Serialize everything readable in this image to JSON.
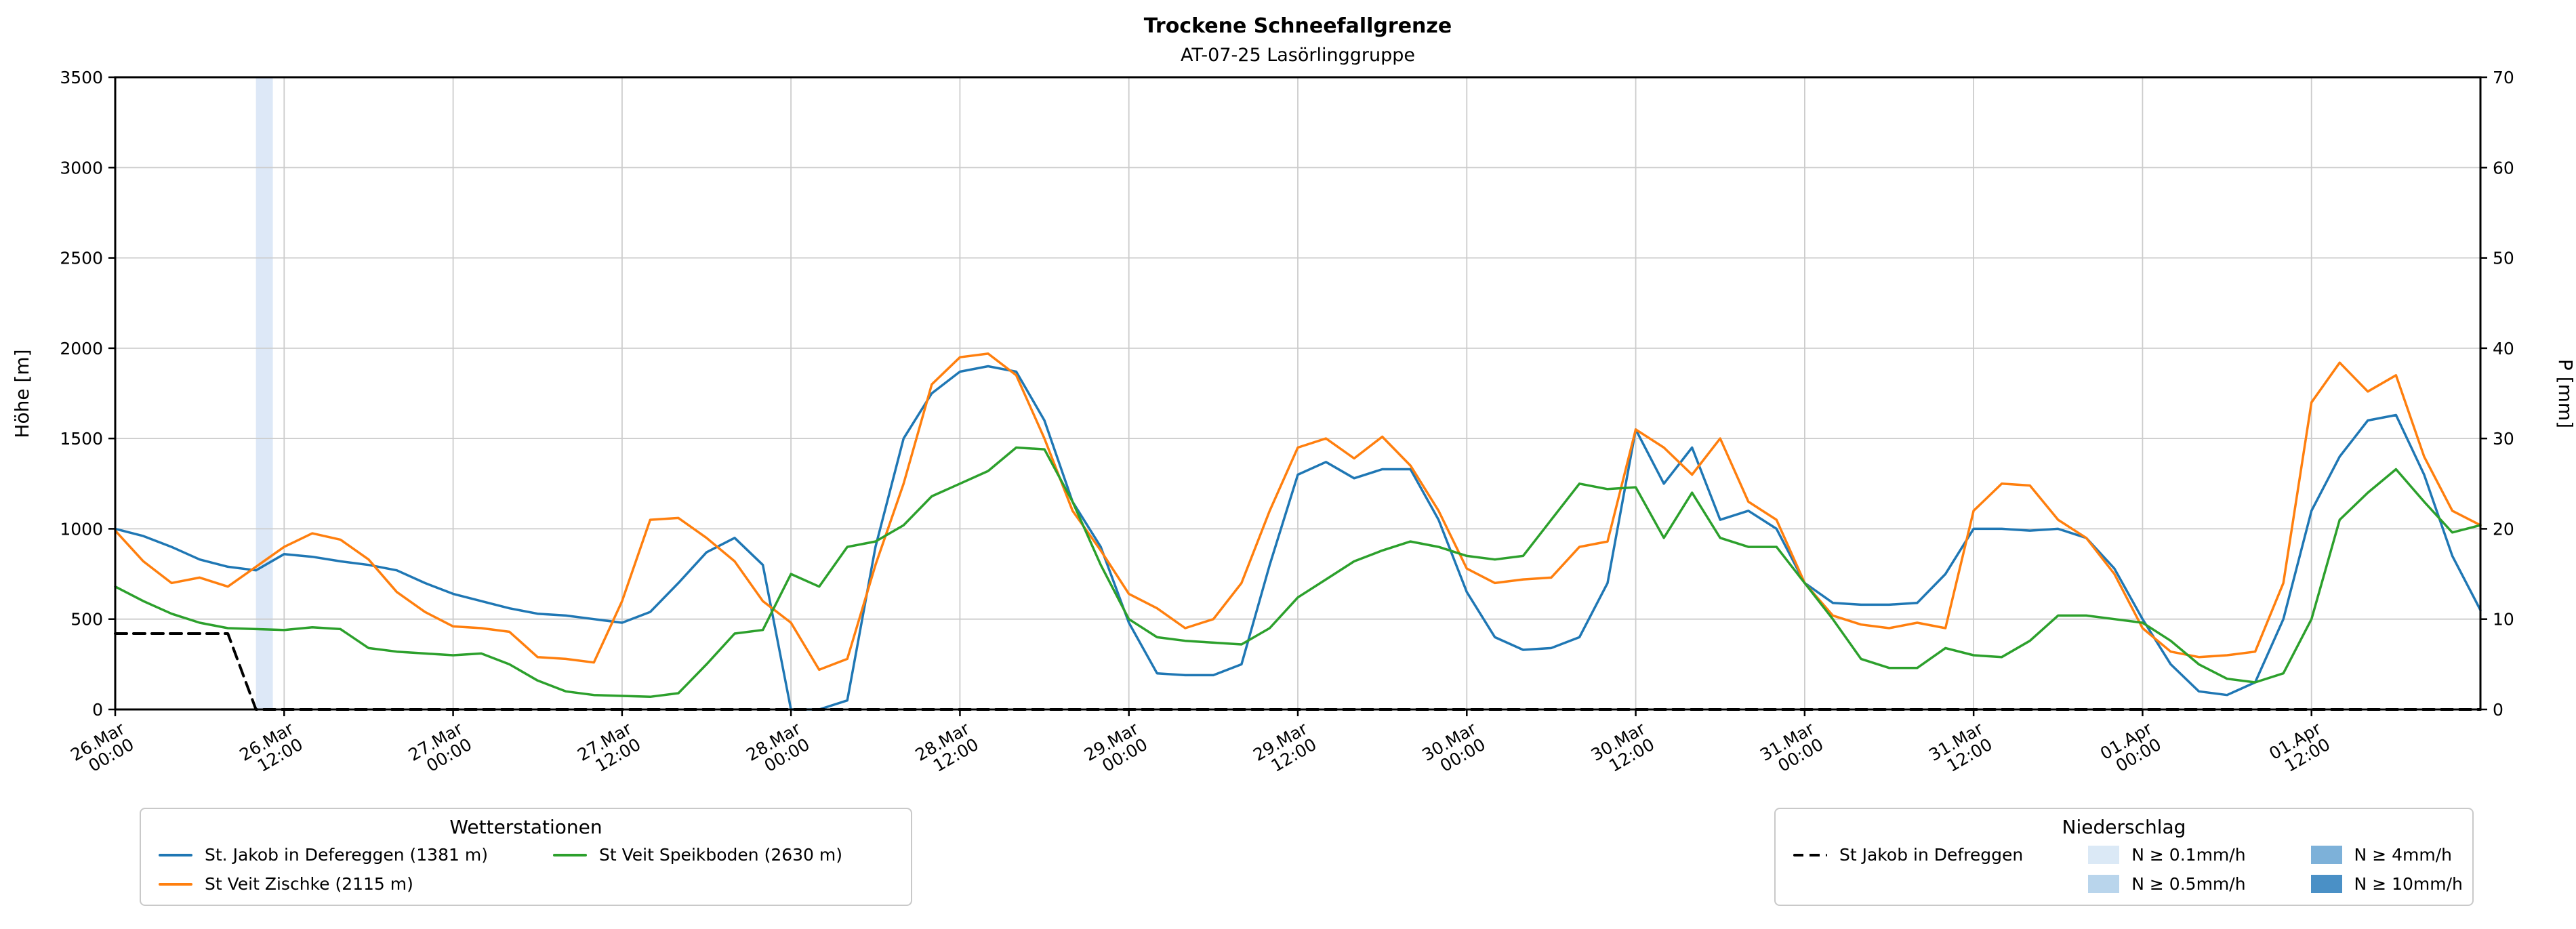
{
  "chart_data": {
    "type": "line",
    "title": "Trockene Schneefallgrenze",
    "subtitle": "AT-07-25 Lasörlinggruppe",
    "ylabel_left": "Höhe [m]",
    "ylabel_right": "P [mm]",
    "ylim_left": [
      0,
      3500
    ],
    "ylim_right": [
      0,
      70
    ],
    "yticks_left": [
      0,
      500,
      1000,
      1500,
      2000,
      2500,
      3000,
      3500
    ],
    "yticks_right": [
      0,
      10,
      20,
      30,
      40,
      50,
      60,
      70
    ],
    "grid": true,
    "x_unit": "hours since 26.Mar 00:00",
    "x_range_hours": [
      0,
      168
    ],
    "x_step_hours": 2,
    "xticks": [
      {
        "hour": 0,
        "label": "26.Mar 00:00"
      },
      {
        "hour": 12,
        "label": "26.Mar 12:00"
      },
      {
        "hour": 24,
        "label": "27.Mar 00:00"
      },
      {
        "hour": 36,
        "label": "27.Mar 12:00"
      },
      {
        "hour": 48,
        "label": "28.Mar 00:00"
      },
      {
        "hour": 60,
        "label": "28.Mar 12:00"
      },
      {
        "hour": 72,
        "label": "29.Mar 00:00"
      },
      {
        "hour": 84,
        "label": "29.Mar 12:00"
      },
      {
        "hour": 96,
        "label": "30.Mar 00:00"
      },
      {
        "hour": 108,
        "label": "30.Mar 12:00"
      },
      {
        "hour": 120,
        "label": "31.Mar 00:00"
      },
      {
        "hour": 132,
        "label": "31.Mar 12:00"
      },
      {
        "hour": 144,
        "label": "01.Apr 00:00"
      },
      {
        "hour": 156,
        "label": "01.Apr 12:00"
      }
    ],
    "series": [
      {
        "id": "st-jakob-in-defereggen",
        "name": "St. Jakob in Defereggen (1381 m)",
        "color": "#1f77b4",
        "style": "solid",
        "axis": "left",
        "values": [
          1000,
          960,
          900,
          830,
          790,
          770,
          860,
          845,
          820,
          800,
          770,
          700,
          640,
          600,
          560,
          530,
          520,
          500,
          480,
          540,
          700,
          870,
          950,
          800,
          0,
          0,
          50,
          900,
          1500,
          1750,
          1870,
          1900,
          1870,
          1600,
          1150,
          900,
          480,
          200,
          190,
          190,
          250,
          800,
          1300,
          1370,
          1280,
          1330,
          1330,
          1050,
          650,
          400,
          330,
          340,
          400,
          700,
          1550,
          1250,
          1450,
          1050,
          1100,
          1000,
          700,
          590,
          580,
          580,
          590,
          750,
          1000,
          1000,
          990,
          1000,
          950,
          780,
          500,
          250,
          100,
          80,
          150,
          500,
          1100,
          1400,
          1600,
          1630,
          1300,
          850,
          550
        ]
      },
      {
        "id": "st-veit-zischke",
        "name": "St Veit Zischke (2115 m)",
        "color": "#ff7f0e",
        "style": "solid",
        "axis": "left",
        "values": [
          990,
          820,
          700,
          730,
          680,
          790,
          900,
          975,
          940,
          830,
          650,
          540,
          460,
          450,
          430,
          290,
          280,
          260,
          600,
          1050,
          1060,
          950,
          820,
          600,
          480,
          220,
          280,
          800,
          1250,
          1800,
          1950,
          1970,
          1850,
          1500,
          1100,
          880,
          640,
          560,
          450,
          500,
          700,
          1100,
          1450,
          1500,
          1390,
          1510,
          1350,
          1100,
          780,
          700,
          720,
          730,
          900,
          930,
          1550,
          1450,
          1300,
          1500,
          1150,
          1050,
          700,
          520,
          470,
          450,
          480,
          450,
          1100,
          1250,
          1240,
          1050,
          950,
          750,
          450,
          320,
          290,
          300,
          320,
          700,
          1700,
          1920,
          1760,
          1850,
          1400,
          1100,
          1020
        ]
      },
      {
        "id": "st-veit-speikboden",
        "name": "St Veit Speikboden (2630 m)",
        "color": "#2ca02c",
        "style": "solid",
        "axis": "left",
        "values": [
          680,
          600,
          530,
          480,
          450,
          445,
          440,
          455,
          445,
          340,
          320,
          310,
          300,
          310,
          250,
          160,
          100,
          80,
          75,
          70,
          90,
          250,
          420,
          440,
          750,
          680,
          900,
          930,
          1020,
          1180,
          1250,
          1320,
          1450,
          1440,
          1150,
          800,
          500,
          400,
          380,
          370,
          360,
          450,
          620,
          720,
          820,
          880,
          930,
          900,
          850,
          830,
          850,
          1050,
          1250,
          1220,
          1230,
          950,
          1200,
          950,
          900,
          900,
          700,
          500,
          280,
          230,
          230,
          340,
          300,
          290,
          380,
          520,
          520,
          500,
          480,
          380,
          250,
          170,
          150,
          200,
          500,
          1050,
          1200,
          1330,
          1150,
          980,
          1020
        ]
      },
      {
        "id": "st-jakob-defreggen-niederschlag",
        "name": "St Jakob in Defreggen",
        "color": "#000000",
        "style": "dashed",
        "axis": "left",
        "values": [
          420,
          420,
          420,
          420,
          420,
          0,
          0,
          0,
          0,
          0,
          0,
          0,
          0,
          0,
          0,
          0,
          0,
          0,
          0,
          0,
          0,
          0,
          0,
          0,
          0,
          0,
          0,
          0,
          0,
          0,
          0,
          0,
          0,
          0,
          0,
          0,
          0,
          0,
          0,
          0,
          0,
          0,
          0,
          0,
          0,
          0,
          0,
          0,
          0,
          0,
          0,
          0,
          0,
          0,
          0,
          0,
          0,
          0,
          0,
          0,
          0,
          0,
          0,
          0,
          0,
          0,
          0,
          0,
          0,
          0,
          0,
          0,
          0,
          0,
          0,
          0,
          0,
          0,
          0,
          0,
          0,
          0,
          0,
          0,
          0
        ]
      }
    ],
    "precip_bands": [
      {
        "start_hour": 10,
        "end_hour": 11.2,
        "level": "0.1",
        "color": "#dde8f7"
      }
    ],
    "legends": {
      "stations": {
        "title": "Wetterstationen",
        "items": [
          {
            "label": "St. Jakob in Defereggen (1381 m)",
            "color": "#1f77b4",
            "type": "line"
          },
          {
            "label": "St Veit Zischke (2115 m)",
            "color": "#ff7f0e",
            "type": "line"
          },
          {
            "label": "St Veit Speikboden (2630 m)",
            "color": "#2ca02c",
            "type": "line"
          }
        ]
      },
      "precipitation": {
        "title": "Niederschlag",
        "items": [
          {
            "label": "St Jakob in Defreggen",
            "color": "#000000",
            "type": "dashed-line"
          },
          {
            "label": "N ≥ 0.1mm/h",
            "color": "#dbe9f6",
            "type": "patch"
          },
          {
            "label": "N ≥ 0.5mm/h",
            "color": "#b9d5ec",
            "type": "patch"
          },
          {
            "label": "N ≥ 4mm/h",
            "color": "#7db1d9",
            "type": "patch"
          },
          {
            "label": "N ≥ 10mm/h",
            "color": "#4a90c6",
            "type": "patch"
          }
        ]
      }
    }
  }
}
